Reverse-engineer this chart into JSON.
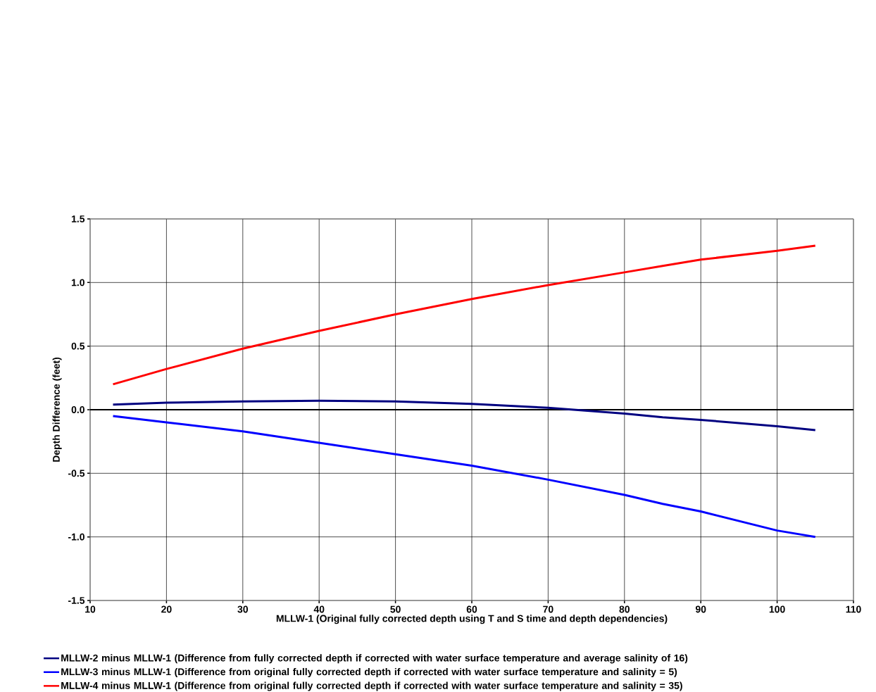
{
  "chart_data": {
    "type": "line",
    "xlabel": "MLLW-1 (Original fully corrected depth using T and S time and depth dependencies)",
    "ylabel": "Depth Difference (feet)",
    "x": [
      13,
      20,
      30,
      40,
      50,
      60,
      70,
      80,
      85,
      90,
      100,
      105
    ],
    "series": [
      {
        "name": "MLLW-2 minus MLLW-1 (Difference from fully corrected depth if corrected with water surface temperature and average salinity of 16)",
        "color": "#000080",
        "values": [
          0.04,
          0.055,
          0.065,
          0.07,
          0.065,
          0.045,
          0.015,
          -0.03,
          -0.06,
          -0.08,
          -0.13,
          -0.16
        ]
      },
      {
        "name": "MLLW-3 minus MLLW-1 (Difference from original fully corrected depth if corrected with water surface temperature and salinity = 5)",
        "color": "#0000ff",
        "values": [
          -0.05,
          -0.1,
          -0.17,
          -0.26,
          -0.35,
          -0.44,
          -0.55,
          -0.67,
          -0.74,
          -0.8,
          -0.95,
          -1.0
        ]
      },
      {
        "name": "MLLW-4 minus MLLW-1 (Difference from original fully corrected depth if corrected with water surface temperature and salinity = 35)",
        "color": "#ff0000",
        "values": [
          0.2,
          0.32,
          0.48,
          0.62,
          0.75,
          0.87,
          0.98,
          1.08,
          1.13,
          1.18,
          1.25,
          1.29
        ]
      }
    ],
    "xlim": [
      10,
      110
    ],
    "xticks": [
      10,
      20,
      30,
      40,
      50,
      60,
      70,
      80,
      90,
      100,
      110
    ],
    "ylim": [
      -1.5,
      1.5
    ],
    "yticks": [
      {
        "value": -1.5,
        "label": "-1.5"
      },
      {
        "value": -1.0,
        "label": "-1.0"
      },
      {
        "value": -0.5,
        "label": "-0.5"
      },
      {
        "value": 0,
        "label": "0.0"
      },
      {
        "value": 0.5,
        "label": "0.5"
      },
      {
        "value": 1.0,
        "label": "1.0"
      },
      {
        "value": 1.5,
        "label": "1.5"
      }
    ],
    "grid": true,
    "legend": "bottom",
    "marker": "none",
    "line_style": "solid"
  }
}
